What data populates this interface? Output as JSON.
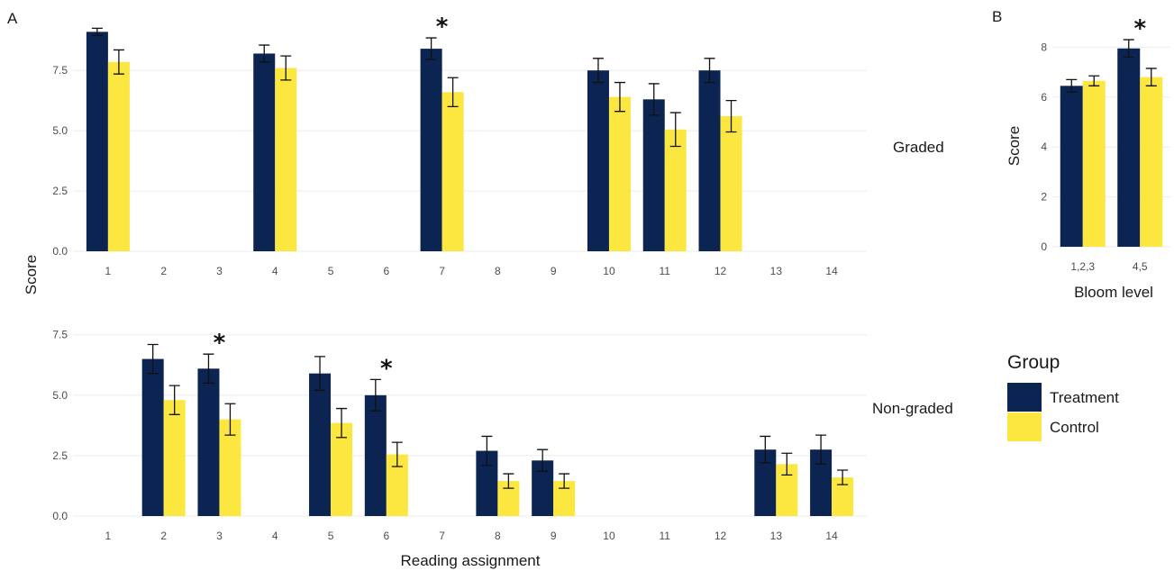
{
  "colors": {
    "treatment": "#0b2451",
    "control": "#fce640"
  },
  "panel_labels": {
    "a": "A",
    "b": "B"
  },
  "legend": {
    "title": "Group",
    "items": [
      "Treatment",
      "Control"
    ]
  },
  "chart_data": [
    {
      "type": "bar",
      "panel": "A",
      "facet": "Graded",
      "categories": [
        "1",
        "2",
        "3",
        "4",
        "5",
        "6",
        "7",
        "8",
        "9",
        "10",
        "11",
        "12",
        "13",
        "14"
      ],
      "ylabel": "Score",
      "xlabel": "",
      "ylim": [
        0,
        9.3
      ],
      "yticks": [
        0.0,
        2.5,
        5.0,
        7.5
      ],
      "ytick_labels": [
        "0.0",
        "2.5",
        "5.0",
        "7.5"
      ],
      "grid": true,
      "series": [
        {
          "name": "Treatment",
          "values": [
            9.1,
            null,
            null,
            8.2,
            null,
            null,
            8.4,
            null,
            null,
            7.5,
            6.3,
            7.5,
            null,
            null
          ],
          "errors": [
            0.15,
            null,
            null,
            0.35,
            null,
            null,
            0.45,
            null,
            null,
            0.5,
            0.65,
            0.5,
            null,
            null
          ]
        },
        {
          "name": "Control",
          "values": [
            7.85,
            null,
            null,
            7.6,
            null,
            null,
            6.6,
            null,
            null,
            6.4,
            5.05,
            5.6,
            null,
            null
          ],
          "errors": [
            0.5,
            null,
            null,
            0.5,
            null,
            null,
            0.6,
            null,
            null,
            0.6,
            0.7,
            0.65,
            null,
            null
          ]
        }
      ],
      "annotations": [
        {
          "category": "7",
          "text": "*"
        }
      ]
    },
    {
      "type": "bar",
      "panel": "A",
      "facet": "Non-graded",
      "categories": [
        "1",
        "2",
        "3",
        "4",
        "5",
        "6",
        "7",
        "8",
        "9",
        "10",
        "11",
        "12",
        "13",
        "14"
      ],
      "ylabel": "Score",
      "xlabel": "Reading assignment",
      "ylim": [
        0,
        7.9
      ],
      "yticks": [
        0.0,
        2.5,
        5.0,
        7.5
      ],
      "ytick_labels": [
        "0.0",
        "2.5",
        "5.0",
        "7.5"
      ],
      "grid": true,
      "series": [
        {
          "name": "Treatment",
          "values": [
            null,
            6.5,
            6.1,
            null,
            5.9,
            5.0,
            null,
            2.7,
            2.3,
            null,
            null,
            null,
            2.75,
            2.75
          ],
          "errors": [
            null,
            0.6,
            0.6,
            null,
            0.7,
            0.65,
            null,
            0.6,
            0.45,
            null,
            null,
            null,
            0.55,
            0.6
          ]
        },
        {
          "name": "Control",
          "values": [
            null,
            4.8,
            4.0,
            null,
            3.85,
            2.55,
            null,
            1.45,
            1.45,
            null,
            null,
            null,
            2.15,
            1.6
          ],
          "errors": [
            null,
            0.6,
            0.65,
            null,
            0.6,
            0.5,
            null,
            0.3,
            0.3,
            null,
            null,
            null,
            0.45,
            0.3
          ]
        }
      ],
      "annotations": [
        {
          "category": "3",
          "text": "*"
        },
        {
          "category": "6",
          "text": "*"
        }
      ]
    },
    {
      "type": "bar",
      "panel": "B",
      "categories": [
        "1,2,3",
        "4,5"
      ],
      "xlabel": "Bloom level",
      "ylabel": "Score",
      "ylim": [
        0,
        8.7
      ],
      "yticks": [
        0,
        2,
        4,
        6,
        8
      ],
      "ytick_labels": [
        "0",
        "2",
        "4",
        "6",
        "8"
      ],
      "grid": true,
      "series": [
        {
          "name": "Treatment",
          "values": [
            6.45,
            7.95
          ],
          "errors": [
            0.25,
            0.35
          ]
        },
        {
          "name": "Control",
          "values": [
            6.65,
            6.8
          ],
          "errors": [
            0.2,
            0.35
          ]
        }
      ],
      "annotations": [
        {
          "category": "4,5",
          "text": "*"
        }
      ]
    }
  ]
}
